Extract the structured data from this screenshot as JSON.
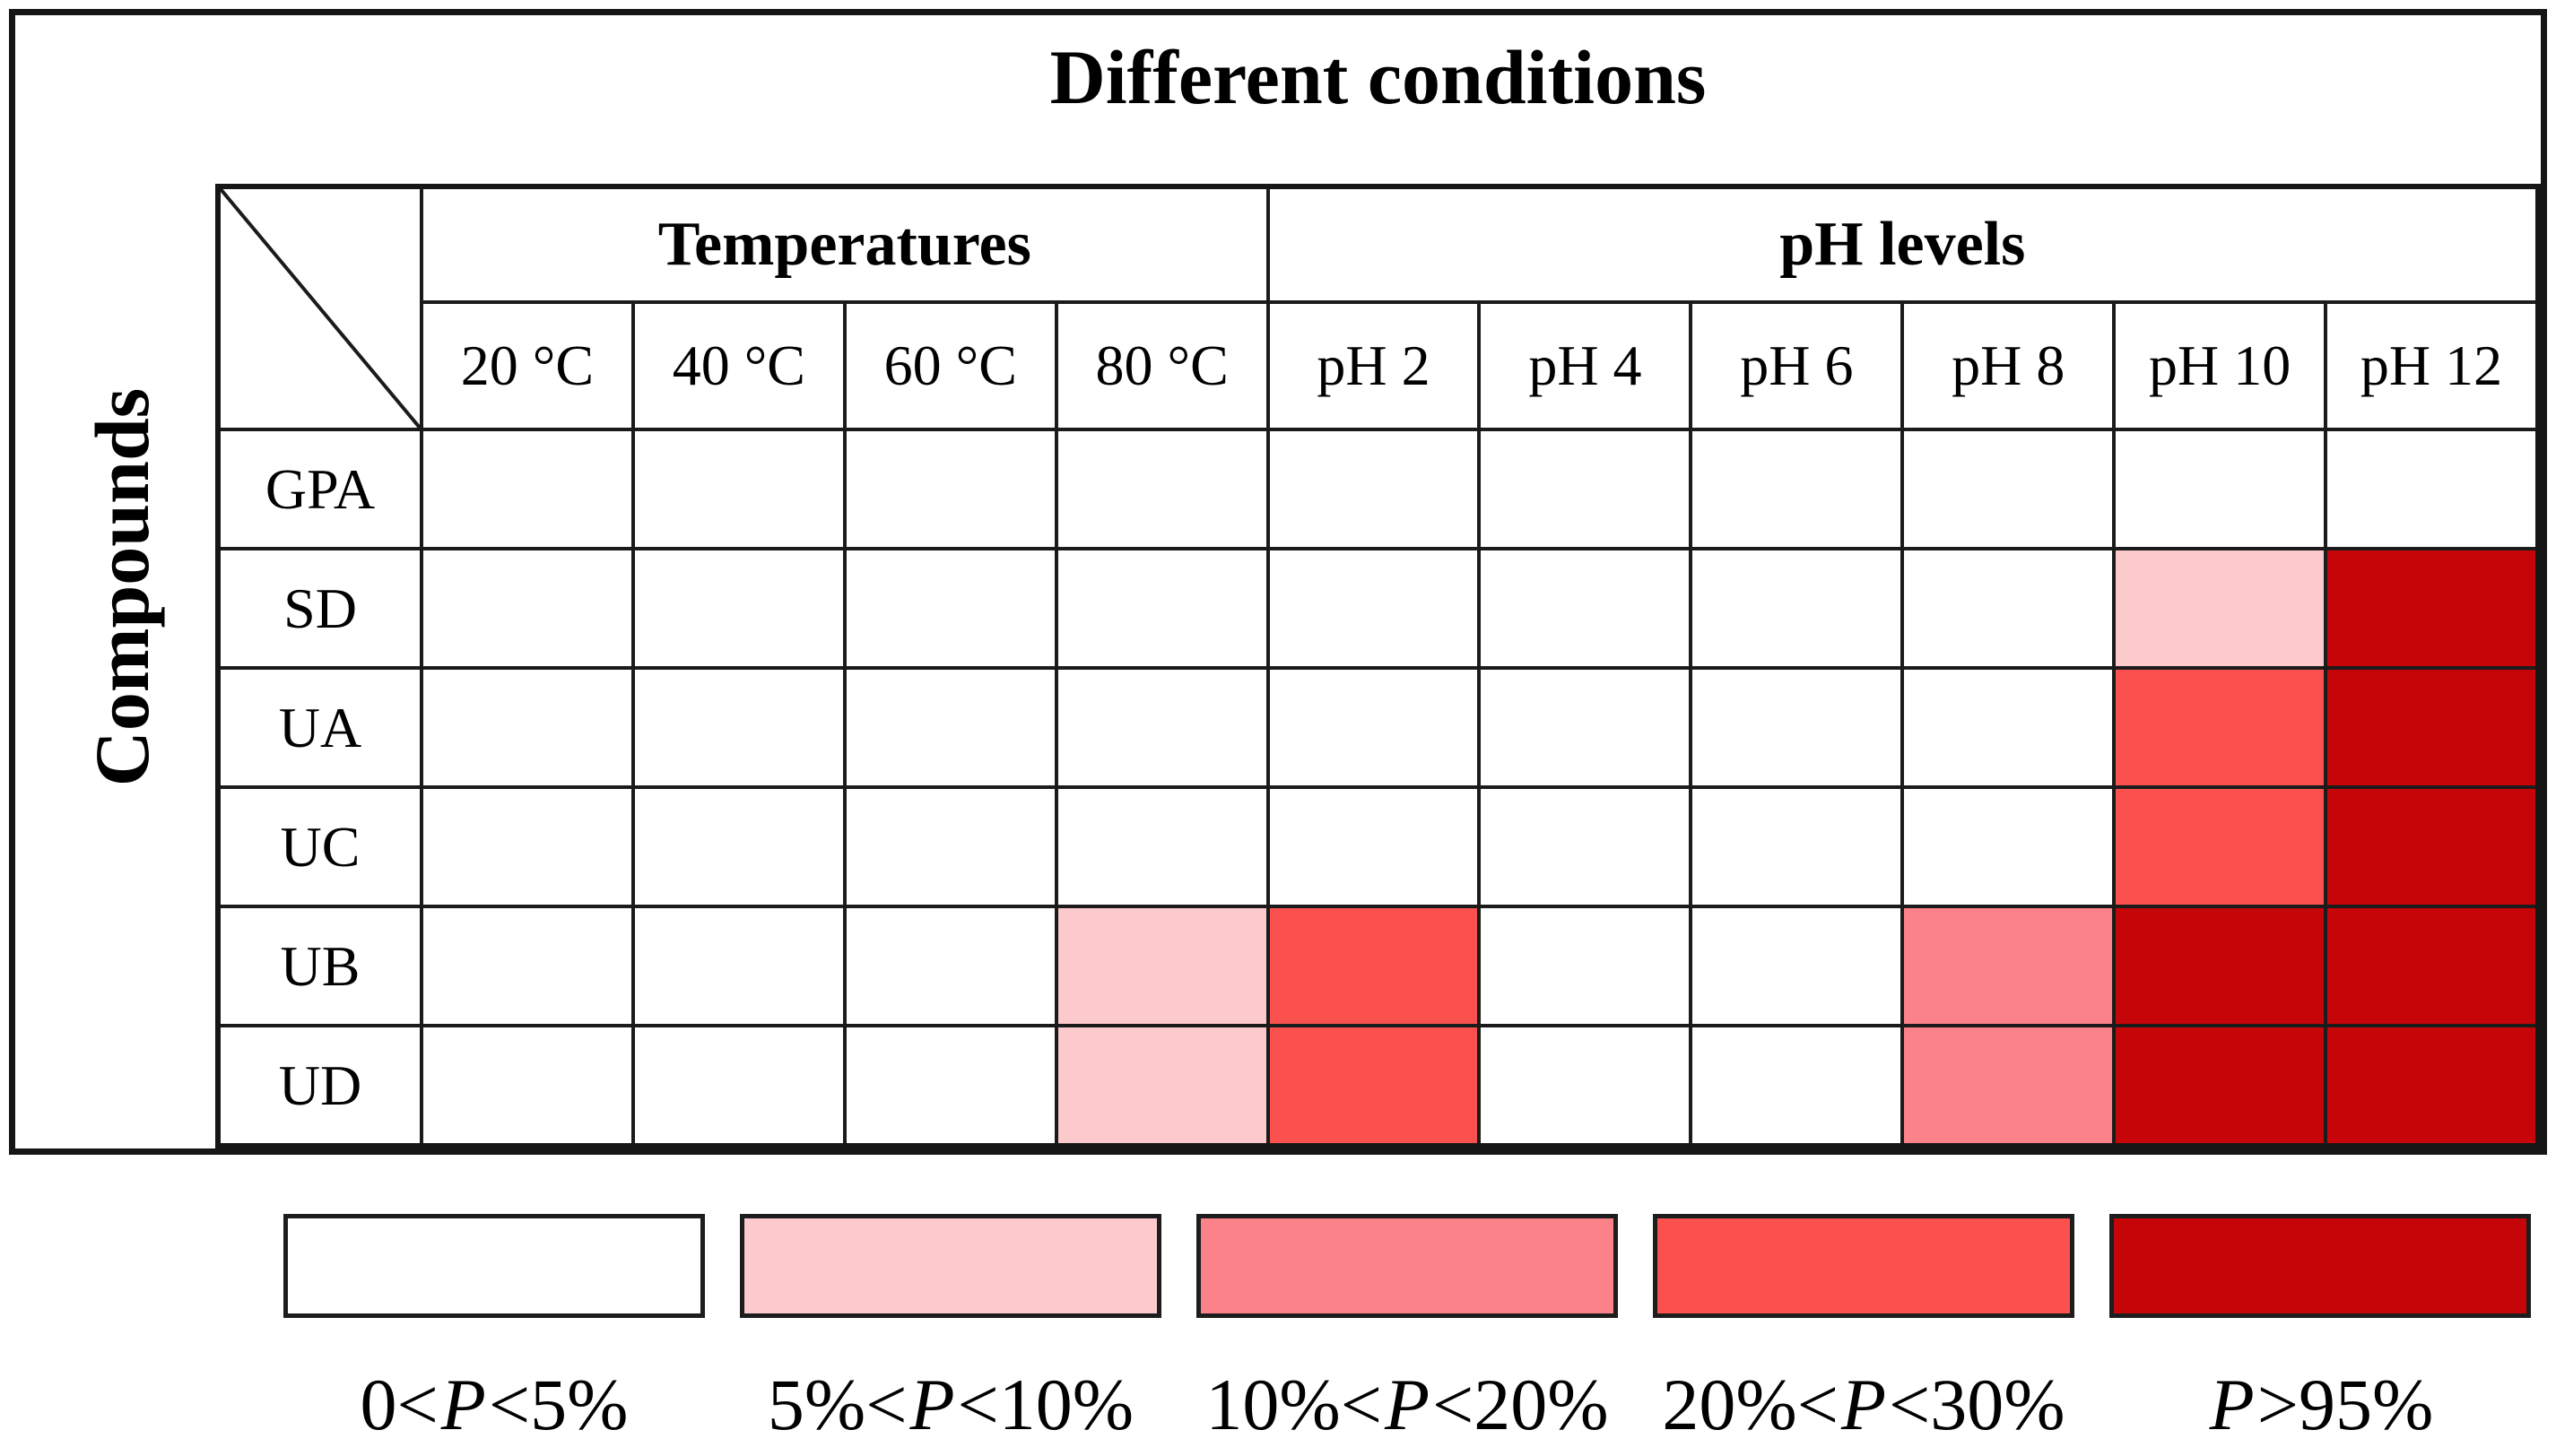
{
  "chart_data": {
    "type": "heatmap",
    "title": "Different conditions",
    "row_axis_label": "Compounds",
    "column_groups": [
      {
        "label": "Temperatures",
        "span": 4
      },
      {
        "label": "pH levels",
        "span": 6
      }
    ],
    "columns": [
      "20 °C",
      "40 °C",
      "60 °C",
      "80 °C",
      "pH 2",
      "pH 4",
      "pH 6",
      "pH 8",
      "pH 10",
      "pH 12"
    ],
    "rows": [
      "GPA",
      "SD",
      "UA",
      "UC",
      "UB",
      "UD"
    ],
    "legend_bins": [
      {
        "label": "0<P<5%",
        "label_pre": "0<",
        "label_var": "P",
        "label_post": "<5%",
        "color": "#ffffff"
      },
      {
        "label": "5%<P<10%",
        "label_pre": "5%<",
        "label_var": "P",
        "label_post": "<10%",
        "color": "#fccacc"
      },
      {
        "label": "10%<P<20%",
        "label_pre": "10%<",
        "label_var": "P",
        "label_post": "<20%",
        "color": "#fb8289"
      },
      {
        "label": "20%<P<30%",
        "label_pre": "20%<",
        "label_var": "P",
        "label_post": "<30%",
        "color": "#fa514e"
      },
      {
        "label": "P>95%",
        "label_pre": "",
        "label_var": "P",
        "label_post": ">95%",
        "color": "#c60508"
      }
    ],
    "cell_bin_indices": [
      [
        0,
        0,
        0,
        0,
        0,
        0,
        0,
        0,
        0,
        0
      ],
      [
        0,
        0,
        0,
        0,
        0,
        0,
        0,
        0,
        1,
        4
      ],
      [
        0,
        0,
        0,
        0,
        0,
        0,
        0,
        0,
        3,
        4
      ],
      [
        0,
        0,
        0,
        0,
        0,
        0,
        0,
        0,
        3,
        4
      ],
      [
        0,
        0,
        0,
        1,
        3,
        0,
        0,
        2,
        4,
        4
      ],
      [
        0,
        0,
        0,
        1,
        3,
        0,
        0,
        2,
        4,
        4
      ]
    ],
    "grid": true,
    "legend_position": "bottom",
    "line_color": "#1b1b1b"
  }
}
